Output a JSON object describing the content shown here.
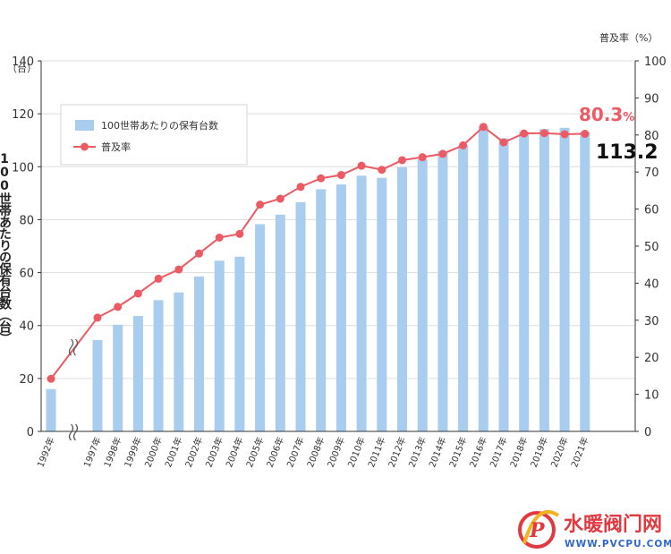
{
  "chart_data": {
    "type": "bar",
    "categories": [
      "1992年",
      "1997年",
      "1998年",
      "1999年",
      "2000年",
      "2001年",
      "2002年",
      "2003年",
      "2004年",
      "2005年",
      "2006年",
      "2007年",
      "2008年",
      "2009年",
      "2010年",
      "2011年",
      "2012年",
      "2013年",
      "2014年",
      "2015年",
      "2016年",
      "2017年",
      "2018年",
      "2019年",
      "2020年",
      "2021年"
    ],
    "series": [
      {
        "name": "100世帯あたりの保有台数",
        "kind": "bar",
        "axis": "left",
        "color": "#a8cdef",
        "values": [
          16,
          34.5,
          40.3,
          43.6,
          49.6,
          52.5,
          58.5,
          64.5,
          66,
          78.3,
          81.9,
          86.6,
          91.5,
          93.3,
          96.6,
          95.8,
          99.8,
          102.8,
          105.9,
          108.1,
          115.2,
          110.7,
          113.2,
          114.2,
          114.7,
          113.2
        ]
      },
      {
        "name": "普及率",
        "kind": "line",
        "axis": "right",
        "color": "#ec5a64",
        "values": [
          14.2,
          30.7,
          33.6,
          37.2,
          41.2,
          43.7,
          48,
          52.3,
          53.3,
          61.2,
          62.8,
          66,
          68.3,
          69.2,
          71.7,
          70.6,
          73.2,
          74,
          74.9,
          77.2,
          82.2,
          78,
          80.4,
          80.5,
          80.2,
          80.3
        ]
      }
    ],
    "ylabel_left": "100世帯あたりの保有台数（台）",
    "ylabel_left_unit": "（台）",
    "ylabel_right": "普及率（%）",
    "ylim_left": [
      0,
      140
    ],
    "ylim_right": [
      0,
      100
    ],
    "yticks_left": [
      "0",
      "20",
      "40",
      "60",
      "80",
      "100",
      "120",
      "140"
    ],
    "yticks_right": [
      "0",
      "10",
      "20",
      "30",
      "40",
      "50",
      "60",
      "70",
      "80",
      "90",
      "100"
    ],
    "annotations": {
      "rate_value": "80.3",
      "rate_unit": "%",
      "count_value": "113.2"
    },
    "axis_break_after": "1992年",
    "grid": true,
    "legend_position": "top-left"
  },
  "watermark": {
    "title": "水暖阀门网",
    "url": "WWW.PVCPU.COM",
    "logo_letter": "P"
  },
  "colors": {
    "bar": "#a8cdef",
    "line": "#ec5a64",
    "grid": "#dddddd",
    "axis": "#333333"
  }
}
